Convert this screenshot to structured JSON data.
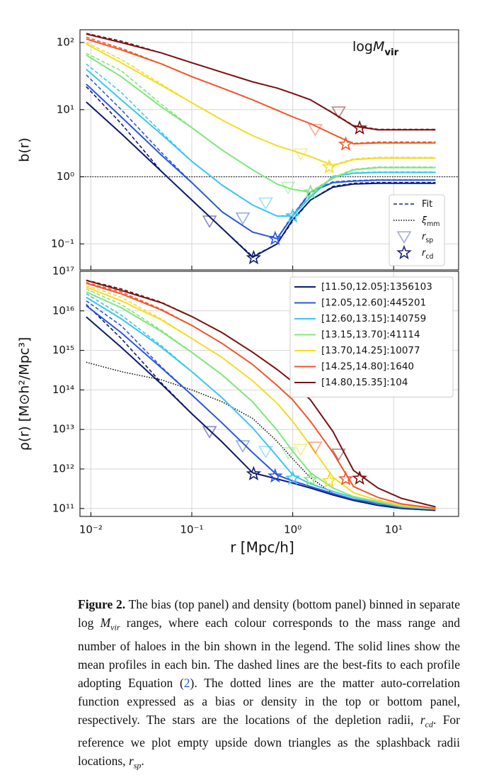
{
  "chart_data": [
    {
      "type": "line",
      "xscale": "log",
      "yscale": "log",
      "grid": true,
      "xtick_labels": false,
      "ylabel": "b(r)",
      "annotation": [
        {
          "text": "log"
        },
        {
          "text": "M",
          "style": "italic"
        },
        {
          "text": "vir",
          "style": "sub"
        }
      ],
      "xlim": [
        0.0078,
        44
      ],
      "ylim": [
        0.041,
        155
      ],
      "xticks": [
        0.01,
        0.1,
        1,
        10
      ],
      "yticks": [
        {
          "value": 0.1,
          "label": "10⁻¹"
        },
        {
          "value": 1,
          "label": "10⁰"
        },
        {
          "value": 10,
          "label": "10¹"
        },
        {
          "value": 100,
          "label": "10²"
        }
      ],
      "hline": 1,
      "legend_corner": "lower right",
      "legend": [
        {
          "text": "Fit",
          "kind": "dashed",
          "color": "#1a237e"
        },
        {
          "text": "ξ",
          "sub": "mm",
          "kind": "dotted",
          "color": "#000000"
        },
        {
          "text": "r",
          "sub": "sp",
          "kind": "triangle",
          "color": "#9fa8da"
        },
        {
          "text": "r",
          "sub": "cd",
          "kind": "star",
          "color": "#1a237e"
        }
      ],
      "x": [
        0.009,
        0.02,
        0.05,
        0.1,
        0.2,
        0.4,
        0.7,
        1,
        1.5,
        2.5,
        4,
        7,
        12,
        26
      ],
      "series": [
        {
          "color": "#0d1b6e",
          "values": [
            13,
            4.4,
            1.2,
            0.45,
            0.17,
            0.063,
            0.1,
            0.23,
            0.45,
            0.7,
            0.78,
            0.8,
            0.8,
            0.8
          ],
          "fit_values": [
            22,
            6.2,
            1.2,
            0.45,
            0.17,
            0.065,
            0.1,
            0.22,
            0.45,
            0.72,
            0.8,
            0.82,
            0.82,
            0.82
          ],
          "rsp": {
            "r": 0.15,
            "value": 0.22
          },
          "rcd": {
            "r": 0.41,
            "value": 0.062
          }
        },
        {
          "color": "#2a57e0",
          "values": [
            24,
            7.8,
            2.1,
            0.82,
            0.3,
            0.15,
            0.12,
            0.26,
            0.59,
            0.82,
            0.86,
            0.89,
            0.89,
            0.89
          ],
          "fit_values": [
            33,
            10,
            2.3,
            0.82,
            0.3,
            0.15,
            0.12,
            0.27,
            0.6,
            0.84,
            0.88,
            0.9,
            0.9,
            0.9
          ],
          "rsp": {
            "r": 0.32,
            "value": 0.245
          },
          "rcd": {
            "r": 0.67,
            "value": 0.12
          }
        },
        {
          "color": "#3cc6f2",
          "values": [
            40,
            14,
            4.3,
            1.7,
            0.75,
            0.38,
            0.26,
            0.26,
            0.5,
            1.0,
            1.13,
            1.16,
            1.16,
            1.16
          ],
          "fit_values": [
            48,
            18,
            4.6,
            1.7,
            0.75,
            0.38,
            0.26,
            0.27,
            0.52,
            1.02,
            1.15,
            1.18,
            1.18,
            1.18
          ],
          "rsp": {
            "r": 0.54,
            "value": 0.41
          },
          "rcd": {
            "r": 1.0,
            "value": 0.26
          }
        },
        {
          "color": "#7ee87a",
          "values": [
            65,
            31,
            11,
            5.4,
            2.5,
            1.27,
            0.78,
            0.65,
            0.59,
            0.95,
            1.27,
            1.37,
            1.37,
            1.37
          ],
          "fit_values": [
            69,
            38,
            12,
            5.4,
            2.5,
            1.27,
            0.78,
            0.65,
            0.6,
            0.97,
            1.3,
            1.4,
            1.4,
            1.4
          ],
          "rsp": {
            "r": 0.9,
            "value": 0.7
          },
          "rcd": {
            "r": 1.5,
            "value": 0.59
          }
        },
        {
          "color": "#f4dc24",
          "values": [
            95,
            50,
            23,
            12.7,
            7,
            4.1,
            2.9,
            2.45,
            2.0,
            1.47,
            1.8,
            1.9,
            1.9,
            1.9
          ],
          "fit_values": [
            100,
            56,
            24,
            12.7,
            7,
            4.1,
            2.9,
            2.45,
            2.0,
            1.5,
            1.85,
            1.95,
            1.95,
            1.95
          ],
          "rsp": {
            "r": 1.2,
            "value": 2.2
          },
          "rcd": {
            "r": 2.3,
            "value": 1.4
          }
        },
        {
          "color": "#f2562a",
          "values": [
            113,
            78,
            48,
            31,
            21,
            14,
            9.8,
            7.8,
            6.2,
            4.3,
            3.1,
            3.2,
            3.2,
            3.2
          ],
          "fit_values": [
            120,
            82,
            48,
            31,
            21,
            14,
            9.8,
            7.8,
            6.2,
            4.3,
            3.15,
            3.3,
            3.3,
            3.3
          ],
          "rsp": {
            "r": 1.67,
            "value": 5.1
          },
          "rcd": {
            "r": 3.35,
            "value": 3.05
          }
        },
        {
          "color": "#7a1212",
          "values": [
            134,
            100,
            70,
            50,
            36,
            26,
            21,
            17.5,
            14,
            8.9,
            5.7,
            5.0,
            5.0,
            5.0
          ],
          "fit_values": [
            137,
            105,
            70,
            50,
            36,
            26,
            21,
            17.5,
            14,
            9,
            5.8,
            5.1,
            5.1,
            5.1
          ],
          "rsp": {
            "r": 2.85,
            "value": 9.3
          },
          "rcd": {
            "r": 4.6,
            "value": 5.3
          }
        }
      ]
    },
    {
      "type": "line",
      "xscale": "log",
      "yscale": "log",
      "grid": true,
      "xtick_labels": true,
      "xlabel": "r [Mpc/h]",
      "ylabel": "ρ(r) [M⊙h²/Mpc³]",
      "xlim": [
        0.0078,
        44
      ],
      "ylim": [
        63000000000.0,
        1e+17
      ],
      "xticks": [
        {
          "value": 0.01,
          "label": "10⁻²"
        },
        {
          "value": 0.1,
          "label": "10⁻¹"
        },
        {
          "value": 1,
          "label": "10⁰"
        },
        {
          "value": 10,
          "label": "10¹"
        }
      ],
      "yticks": [
        {
          "value": 100000000000.0,
          "label": "10¹¹"
        },
        {
          "value": 1000000000000.0,
          "label": "10¹²"
        },
        {
          "value": 10000000000000.0,
          "label": "10¹³"
        },
        {
          "value": 100000000000000.0,
          "label": "10¹⁴"
        },
        {
          "value": 1000000000000000.0,
          "label": "10¹⁵"
        },
        {
          "value": 1e+16,
          "label": "10¹⁶"
        },
        {
          "value": 1e+17,
          "label": "10¹⁷"
        }
      ],
      "legend_corner": "upper right",
      "x": [
        0.009,
        0.02,
        0.05,
        0.1,
        0.2,
        0.4,
        0.7,
        1,
        1.5,
        2.5,
        4,
        7,
        12,
        26
      ],
      "matter_values": [
        500000000000000.0,
        290000000000000.0,
        180000000000000.0,
        100000000000000.0,
        50000000000000.0,
        19000000000000.0,
        5000000000000.0,
        1800000000000.0,
        600000000000.0,
        240000000000.0,
        160000000000.0,
        120000000000.0,
        110000000000.0,
        100000000000.0
      ],
      "series": [
        {
          "name": "[11.50,12.05]:1356103",
          "color": "#0d1b6e",
          "values": [
            7000000000000000.0,
            1200000000000000.0,
            140000000000000.0,
            25000000000000.0,
            4800000000000.0,
            800000000000.0,
            560000000000.0,
            440000000000.0,
            330000000000.0,
            220000000000.0,
            160000000000.0,
            120000000000.0,
            100000000000.0,
            90000000000.0
          ],
          "fit_values": [
            1.45e+16,
            2000000000000000.0,
            150000000000000.0,
            25000000000000.0,
            4800000000000.0,
            800000000000.0,
            560000000000.0,
            440000000000.0,
            330000000000.0,
            220000000000.0,
            160000000000.0,
            120000000000.0,
            100000000000.0,
            90000000000.0
          ],
          "rsp": {
            "r": 0.15,
            "value": 8900000000000.0
          },
          "rcd": {
            "r": 0.41,
            "value": 750000000000.0
          }
        },
        {
          "name": "[12.05,12.60]:445201",
          "color": "#2a57e0",
          "values": [
            1.35e+16,
            2800000000000000.0,
            360000000000000.0,
            75000000000000.0,
            14500000000000.0,
            2600000000000.0,
            700000000000.0,
            500000000000.0,
            360000000000.0,
            240000000000.0,
            170000000000.0,
            133000000000.0,
            105000000000.0,
            95000000000.0
          ],
          "fit_values": [
            1.8e+16,
            4200000000000000.0,
            380000000000000.0,
            75000000000000.0,
            14500000000000.0,
            2600000000000.0,
            700000000000.0,
            500000000000.0,
            360000000000.0,
            240000000000.0,
            170000000000.0,
            133000000000.0,
            105000000000.0,
            95000000000.0
          ],
          "rsp": {
            "r": 0.32,
            "value": 3900000000000.0
          },
          "rcd": {
            "r": 0.67,
            "value": 660000000000.0
          }
        },
        {
          "name": "[12.60,13.15]:140759",
          "color": "#3cc6f2",
          "values": [
            2.2e+16,
            6300000000000000.0,
            1200000000000000.0,
            290000000000000.0,
            63000000000000.0,
            11000000000000.0,
            2100000000000.0,
            700000000000.0,
            420000000000.0,
            270000000000.0,
            190000000000.0,
            140000000000.0,
            110000000000.0,
            96000000000.0
          ],
          "fit_values": [
            2.7e+16,
            7800000000000000.0,
            1300000000000000.0,
            290000000000000.0,
            63000000000000.0,
            11000000000000.0,
            2100000000000.0,
            700000000000.0,
            420000000000.0,
            270000000000.0,
            190000000000.0,
            140000000000.0,
            110000000000.0,
            96000000000.0
          ],
          "rsp": {
            "r": 0.54,
            "value": 2800000000000.0
          },
          "rcd": {
            "r": 1.0,
            "value": 580000000000.0
          }
        },
        {
          "name": "[13.15,13.70]:41114",
          "color": "#7ee87a",
          "values": [
            3e+16,
            1.2e+16,
            3000000000000000.0,
            890000000000000.0,
            240000000000000.0,
            50000000000000.0,
            9600000000000.0,
            2800000000000.0,
            800000000000.0,
            330000000000.0,
            200000000000.0,
            150000000000.0,
            115000000000.0,
            98000000000.0
          ],
          "fit_values": [
            3.6e+16,
            1.45e+16,
            3200000000000000.0,
            890000000000000.0,
            240000000000000.0,
            50000000000000.0,
            9600000000000.0,
            2800000000000.0,
            800000000000.0,
            330000000000.0,
            200000000000.0,
            150000000000.0,
            115000000000.0,
            98000000000.0
          ],
          "rsp": {
            "r": 0.9,
            "value": 2600000000000.0
          },
          "rcd": {
            "r": 1.5,
            "value": 540000000000.0
          }
        },
        {
          "name": "[13.70,14.25]:10077",
          "color": "#f4dc24",
          "values": [
            4e+16,
            1.8e+16,
            5900000000000000.0,
            2000000000000000.0,
            660000000000000.0,
            170000000000000.0,
            46000000000000.0,
            16000000000000.0,
            3900000000000.0,
            620000000000.0,
            250000000000.0,
            160000000000.0,
            120000000000.0,
            100000000000.0
          ],
          "fit_values": [
            4.4e+16,
            2.2e+16,
            6200000000000000.0,
            2000000000000000.0,
            660000000000000.0,
            170000000000000.0,
            46000000000000.0,
            16000000000000.0,
            3900000000000.0,
            620000000000.0,
            250000000000.0,
            160000000000.0,
            120000000000.0,
            100000000000.0
          ],
          "rsp": {
            "r": 1.2,
            "value": 3200000000000.0
          },
          "rcd": {
            "r": 2.3,
            "value": 500000000000.0
          }
        },
        {
          "name": "[14.25,14.80]:1640",
          "color": "#f2562a",
          "values": [
            5e+16,
            2.7e+16,
            1.05e+16,
            4300000000000000.0,
            1500000000000000.0,
            440000000000000.0,
            130000000000000.0,
            56000000000000.0,
            16000000000000.0,
            2600000000000.0,
            360000000000.0,
            190000000000.0,
            130000000000.0,
            100000000000.0
          ],
          "fit_values": [
            5.2e+16,
            3e+16,
            1.1e+16,
            4300000000000000.0,
            1500000000000000.0,
            440000000000000.0,
            130000000000000.0,
            56000000000000.0,
            16000000000000.0,
            2600000000000.0,
            360000000000.0,
            190000000000.0,
            130000000000.0,
            100000000000.0
          ],
          "rsp": {
            "r": 1.67,
            "value": 3600000000000.0
          },
          "rcd": {
            "r": 3.35,
            "value": 560000000000.0
          }
        },
        {
          "name": "[14.80,15.35]:104",
          "color": "#7a1212",
          "values": [
            5.9e+16,
            3.3e+16,
            1.6e+16,
            7200000000000000.0,
            2800000000000000.0,
            900000000000000.0,
            330000000000000.0,
            160000000000000.0,
            56000000000000.0,
            8900000000000.0,
            920000000000.0,
            330000000000.0,
            180000000000.0,
            110000000000.0
          ],
          "fit_values": [
            6e+16,
            3.6e+16,
            1.65e+16,
            7200000000000000.0,
            2800000000000000.0,
            900000000000000.0,
            330000000000000.0,
            160000000000000.0,
            56000000000000.0,
            8900000000000.0,
            920000000000.0,
            330000000000.0,
            180000000000.0,
            110000000000.0
          ],
          "rsp": {
            "r": 2.85,
            "value": 2400000000000.0
          },
          "rcd": {
            "r": 4.6,
            "value": 580000000000.0
          }
        }
      ]
    }
  ],
  "caption": {
    "label": "Figure 2.",
    "segments": [
      {
        "text": " The bias (top panel) and density (bottom panel) binned in separate log "
      },
      {
        "text": "M",
        "style": "italic"
      },
      {
        "text": "vir",
        "style": "sub"
      },
      {
        "text": " ranges, where each colour corresponds to the mass range and number of haloes in the bin shown in the legend. The solid lines show the mean profiles in each bin. The dashed lines are the best-fits to each profile adopting Equation ("
      },
      {
        "text": "2",
        "style": "link"
      },
      {
        "text": "). The dotted lines are the matter auto-correlation function expressed as a bias or density in the top or bottom panel, respectively. The stars are the locations of the depletion radii, "
      },
      {
        "text": "r",
        "style": "italic"
      },
      {
        "text": "cd",
        "style": "sub"
      },
      {
        "text": ". For reference we plot empty upside down triangles as the splashback radii locations, "
      },
      {
        "text": "r",
        "style": "italic"
      },
      {
        "text": "sp",
        "style": "sub"
      },
      {
        "text": "."
      }
    ]
  }
}
